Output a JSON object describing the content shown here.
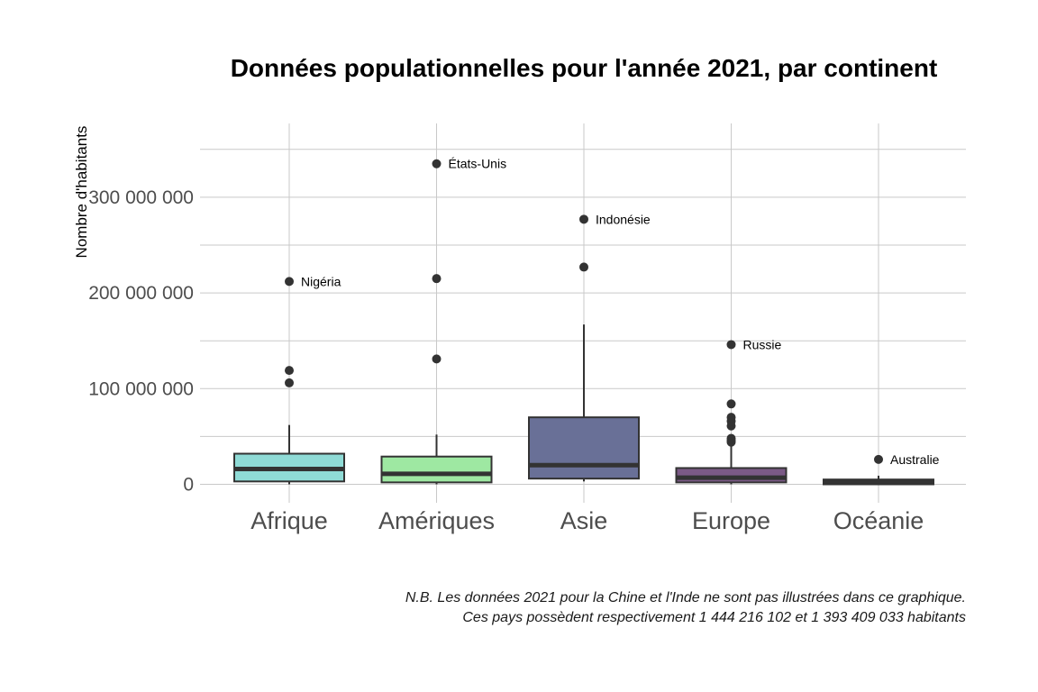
{
  "chart_data": {
    "type": "boxplot",
    "title": "Données populationnelles pour l'année 2021, par continent",
    "xlabel": "",
    "ylabel": "Nombre d'habitants",
    "ylim": [
      -20000000,
      380000000
    ],
    "yticks": [
      0,
      100000000,
      200000000,
      300000000
    ],
    "ytick_labels": [
      "0",
      "100 000 000",
      "200 000 000",
      "300 000 000"
    ],
    "grid": true,
    "caption": [
      "N.B. Les données 2021 pour la Chine et l'Inde ne sont pas illustrées dans ce graphique.",
      "Ces pays possèdent respectivement 1 444 216 102 et 1 393 409 033 habitants"
    ],
    "categories": [
      "Afrique",
      "Amériques",
      "Asie",
      "Europe",
      "Océanie"
    ],
    "colors": [
      "#8fdbd6",
      "#9ee8a2",
      "#697097",
      "#7b5a86",
      "#555568"
    ],
    "boxes": [
      {
        "name": "Afrique",
        "min": 0,
        "q1": 3000000,
        "median": 16000000,
        "q3": 32000000,
        "max": 62000000,
        "outliers": [
          106000000,
          119000000,
          212000000
        ]
      },
      {
        "name": "Amériques",
        "min": 0,
        "q1": 2000000,
        "median": 11000000,
        "q3": 29000000,
        "max": 52000000,
        "outliers": [
          131000000,
          215000000,
          335000000
        ]
      },
      {
        "name": "Asie",
        "min": 3000000,
        "q1": 6000000,
        "median": 20000000,
        "q3": 70000000,
        "max": 167000000,
        "outliers": [
          227000000,
          277000000
        ]
      },
      {
        "name": "Europe",
        "min": 0,
        "q1": 2000000,
        "median": 7000000,
        "q3": 17000000,
        "max": 40000000,
        "outliers": [
          44000000,
          46000000,
          48000000,
          61000000,
          66000000,
          70000000,
          84000000,
          146000000
        ]
      },
      {
        "name": "Océanie",
        "min": 0,
        "q1": 0,
        "median": 2000000,
        "q3": 5000000,
        "max": 9000000,
        "outliers": [
          26000000
        ]
      }
    ],
    "annotations": [
      {
        "category": "Afrique",
        "value": 212000000,
        "label": "Nigéria"
      },
      {
        "category": "Amériques",
        "value": 335000000,
        "label": "États-Unis"
      },
      {
        "category": "Asie",
        "value": 277000000,
        "label": "Indonésie"
      },
      {
        "category": "Europe",
        "value": 146000000,
        "label": "Russie"
      },
      {
        "category": "Océanie",
        "value": 26000000,
        "label": "Australie"
      }
    ]
  }
}
